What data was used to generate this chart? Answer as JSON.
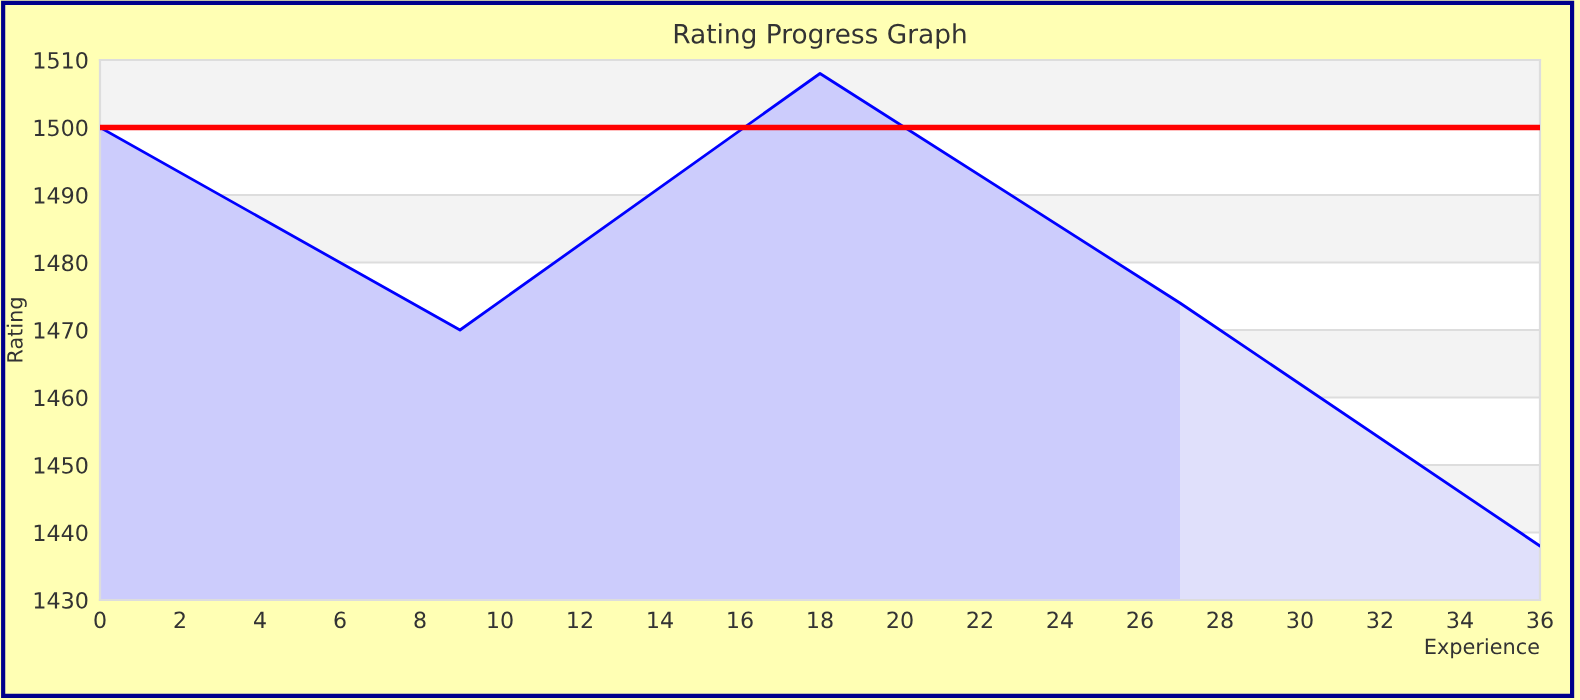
{
  "chart_data": {
    "type": "area",
    "title": "Rating Progress Graph",
    "xlabel": "Experience",
    "ylabel": "Rating",
    "series": [
      {
        "color": "#ccccfc",
        "x": [
          0,
          9,
          18,
          27
        ],
        "values": [
          1500,
          1470,
          1508,
          1474
        ]
      },
      {
        "color": "#e0e0fb",
        "x": [
          27,
          36
        ],
        "values": [
          1474,
          1438
        ]
      },
      {
        "type": "line",
        "color": "#0000ff",
        "x": [
          0,
          9,
          18,
          27,
          36
        ],
        "values": [
          1500,
          1470,
          1508,
          1474,
          1438
        ]
      }
    ],
    "xlim": [
      0,
      36
    ],
    "xticks": [
      0,
      2,
      4,
      6,
      8,
      10,
      12,
      14,
      16,
      18,
      20,
      22,
      24,
      26,
      28,
      30,
      32,
      34,
      36
    ],
    "ylim": [
      1430,
      1510
    ],
    "yticks": [
      1430,
      1440,
      1450,
      1460,
      1470,
      1480,
      1490,
      1500,
      1510
    ],
    "grid": "y",
    "legend": false,
    "marker": "none",
    "line_style": "solid",
    "ref_lines": [
      {
        "axis": "y",
        "value": 1500,
        "color": "#ff0000"
      }
    ],
    "bands": [
      {
        "axis": "y",
        "from": 1500,
        "to": 1510,
        "color": "#f3f3f3"
      },
      {
        "axis": "y",
        "from": 1480,
        "to": 1490,
        "color": "#f3f3f3"
      },
      {
        "axis": "y",
        "from": 1460,
        "to": 1470,
        "color": "#f3f3f3"
      },
      {
        "axis": "y",
        "from": 1440,
        "to": 1450,
        "color": "#f3f3f3"
      }
    ]
  }
}
